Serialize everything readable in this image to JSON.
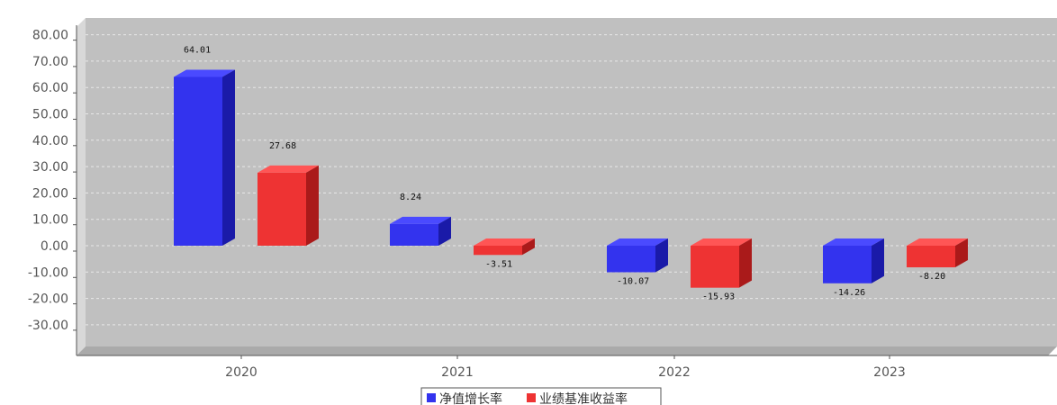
{
  "chart_data": {
    "type": "bar",
    "title": "",
    "categories": [
      "2020",
      "2021",
      "2022",
      "2023"
    ],
    "series": [
      {
        "name": "净值增长率",
        "values": [
          64.01,
          8.24,
          -10.07,
          -14.26
        ]
      },
      {
        "name": "业绩基准收益率",
        "values": [
          27.68,
          -3.51,
          -15.93,
          -8.2
        ]
      }
    ],
    "value_labels": [
      [
        "64.01",
        "8.24",
        "-10.07",
        "-14.26"
      ],
      [
        "27.68",
        "-3.51",
        "-15.93",
        "-8.20"
      ]
    ],
    "y_ticks": [
      "80.00",
      "70.00",
      "60.00",
      "50.00",
      "40.00",
      "30.00",
      "20.00",
      "10.00",
      "0.00",
      "-10.00",
      "-20.00",
      "-30.00"
    ],
    "ylim": [
      -40,
      82
    ],
    "grid": true,
    "legend_position": "bottom-center",
    "style": "3d"
  },
  "colors": {
    "series": [
      "#3333ee",
      "#ee3333"
    ],
    "series_top": [
      "#4a4aff",
      "#ff5555"
    ],
    "series_side": [
      "#1a1aa8",
      "#aa1a1a"
    ],
    "plot_background": "#c0c0c0",
    "plot_wall": "#d8d8d8",
    "plot_floor": "#aaaaaa",
    "gridline": "#e8e8e8"
  }
}
